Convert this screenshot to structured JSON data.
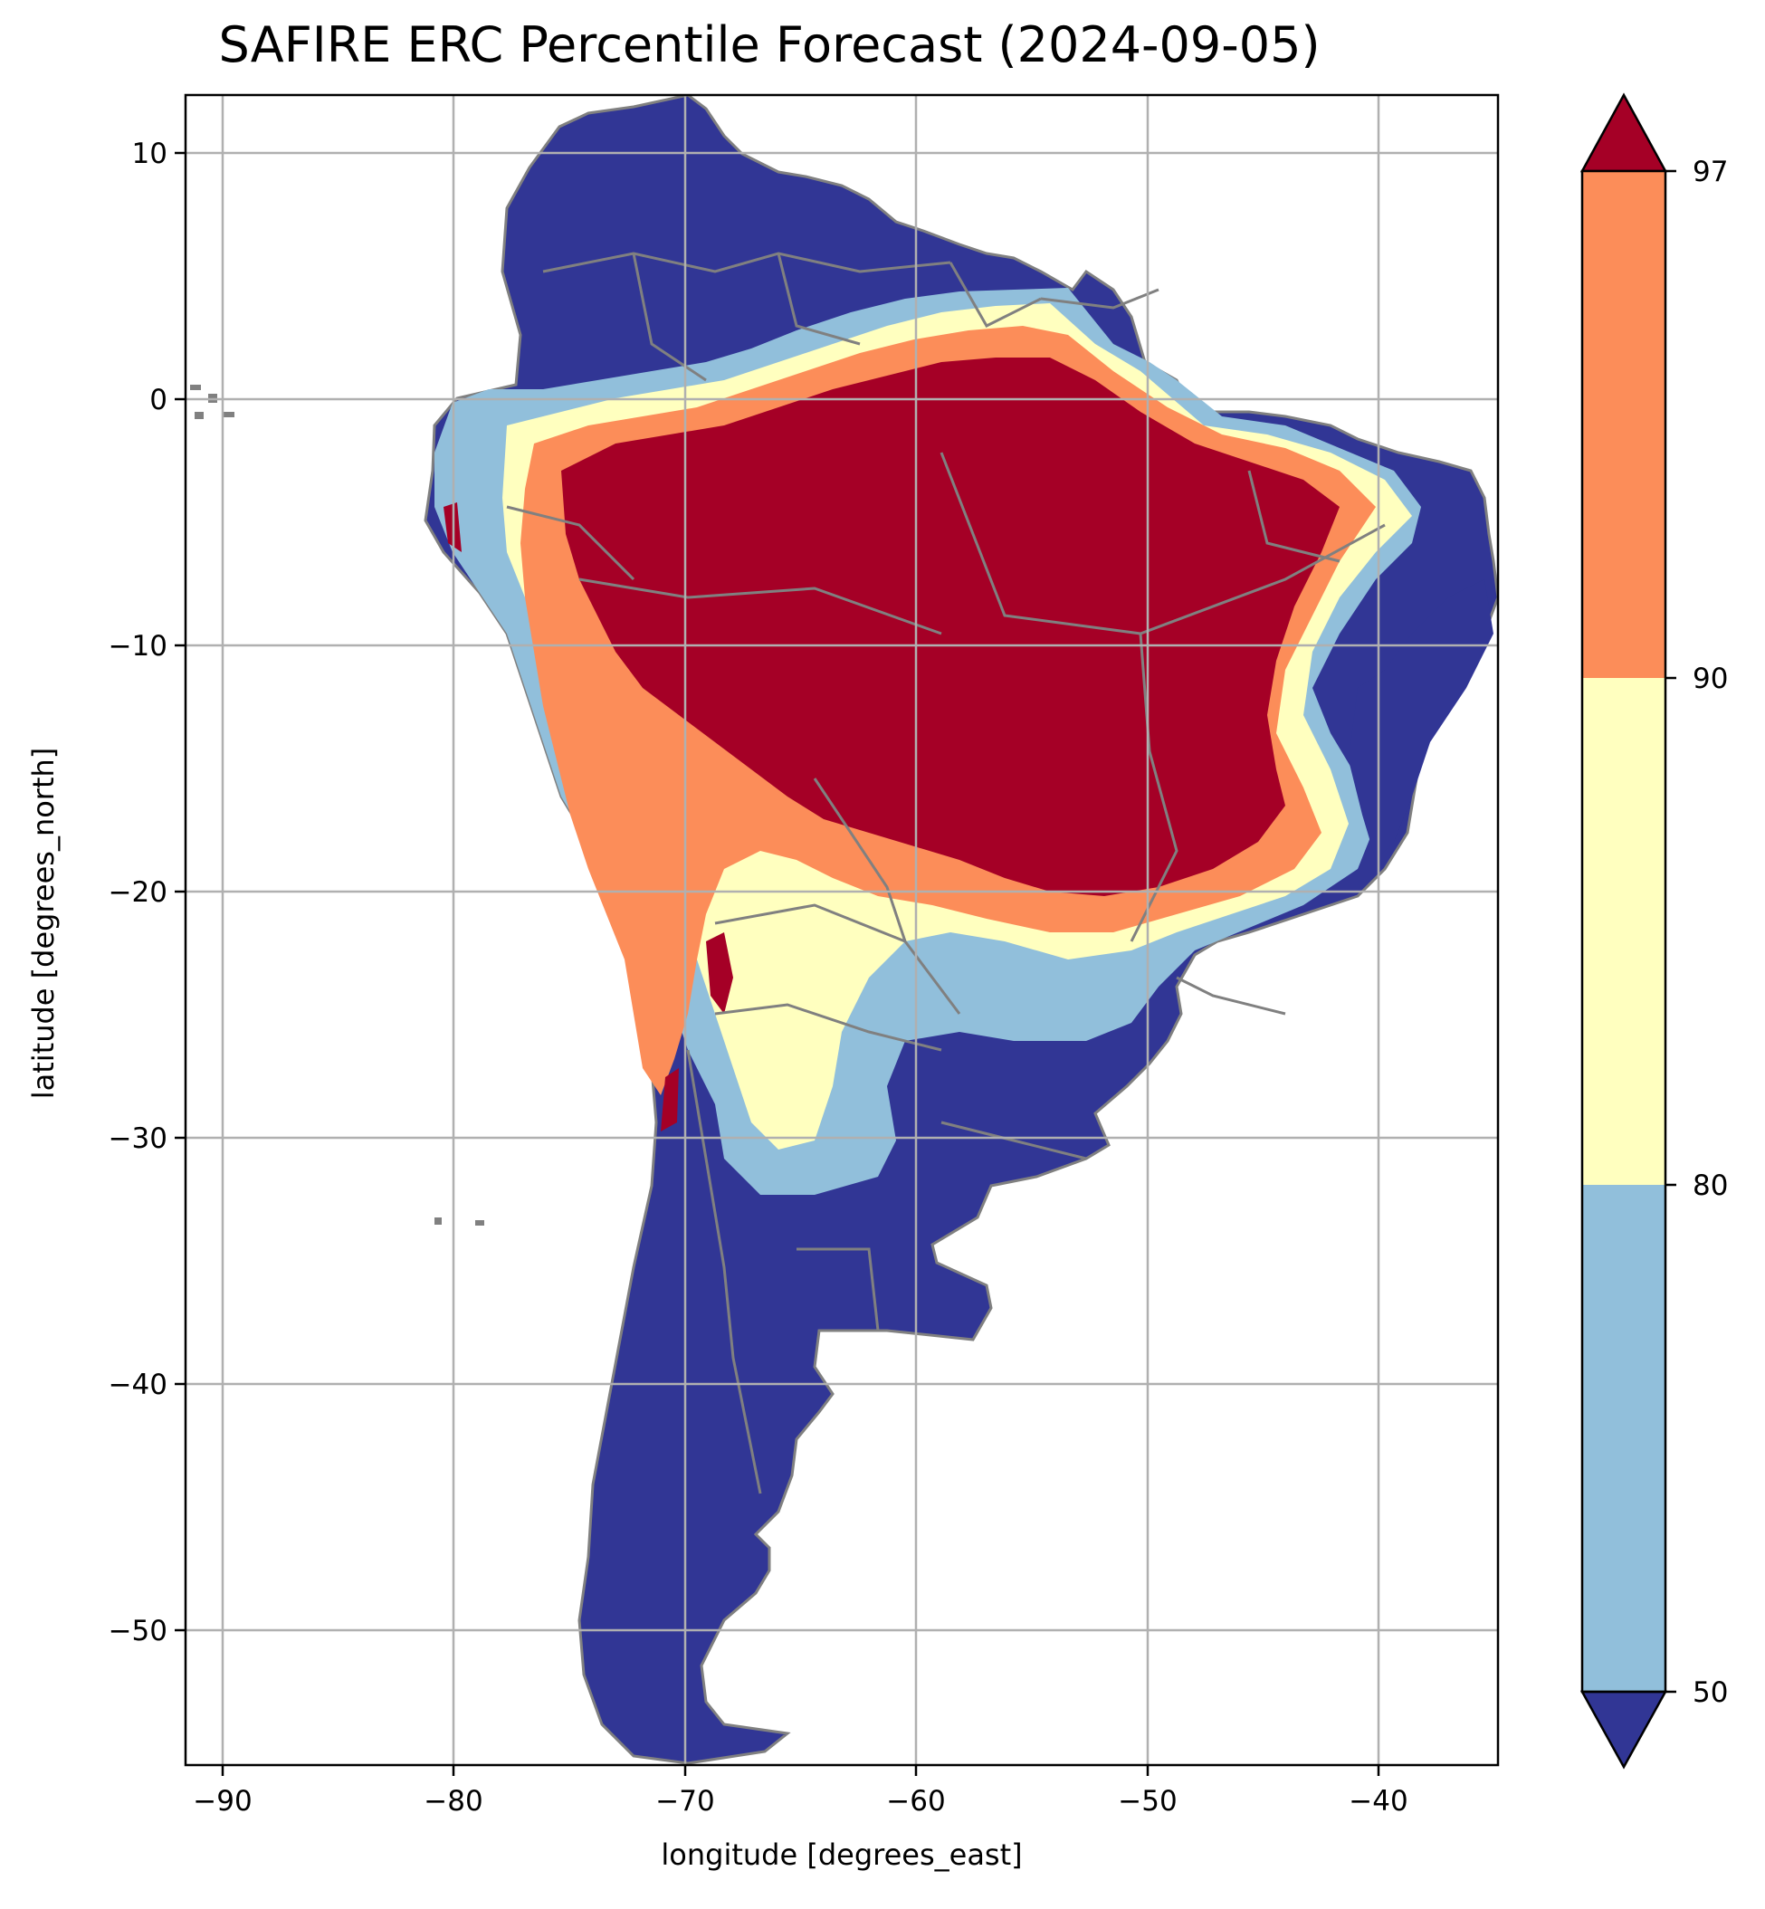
{
  "title": "SAFIRE ERC Percentile Forecast (2024-09-05)",
  "xlabel": "longitude [degrees_east]",
  "ylabel": "latitude [degrees_north]",
  "x_ticks": [
    "−90",
    "−80",
    "−70",
    "−60",
    "−50",
    "−40"
  ],
  "y_ticks": [
    "10",
    "0",
    "−10",
    "−20",
    "−30",
    "−40",
    "−50"
  ],
  "colorbar": {
    "ticks": [
      "50",
      "80",
      "90",
      "97"
    ],
    "classes": [
      {
        "range": "< 50",
        "color": "#313695"
      },
      {
        "range": "50–80",
        "color": "#91bfdb"
      },
      {
        "range": "80–90",
        "color": "#ffffbf"
      },
      {
        "range": "90–97",
        "color": "#fc8d59"
      },
      {
        "range": "> 97",
        "color": "#a50026"
      }
    ],
    "extend": "both"
  },
  "map": {
    "region": "South America",
    "lon_range": [
      -91.5,
      -35
    ],
    "lat_range": [
      -56,
      12.3
    ],
    "gridlines": true,
    "borders_color": "#808080",
    "ocean_color": "#ffffff"
  }
}
